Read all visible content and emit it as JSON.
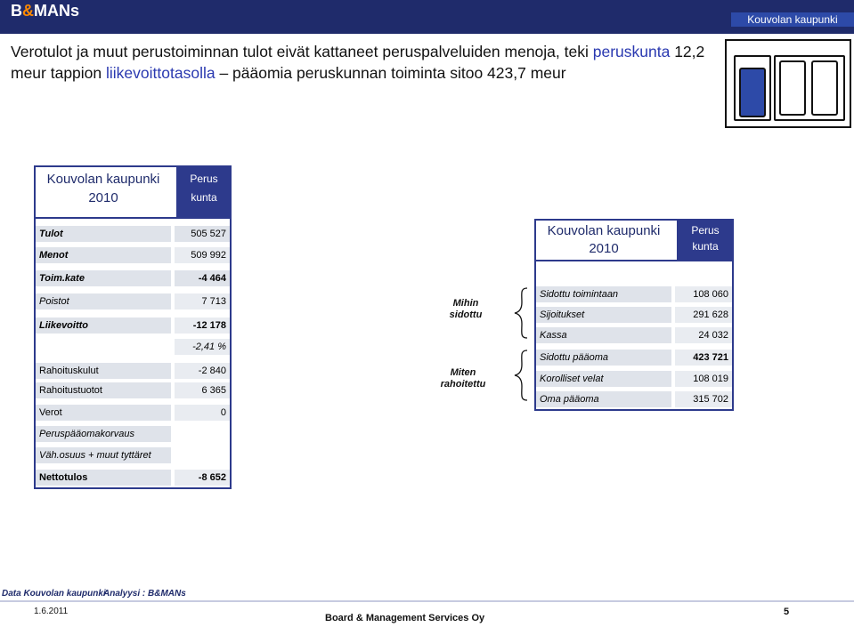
{
  "header": {
    "logo_prefix": "B",
    "logo_amp": "&",
    "logo_suffix": "MANs",
    "org_badge": "Kouvolan kaupunki"
  },
  "title": {
    "part1": "Verotulot ja muut perustoiminnan tulot eivät kattaneet peruspalveluiden menoja, teki ",
    "hl1": "peruskunta",
    "part2": " 12,2  meur tappion ",
    "hl2": "liikevoittotasolla",
    "part3": " – pääomia peruskunnan toiminta sitoo 423,7 meur"
  },
  "left_table": {
    "header_name": "Kouvolan kaupunki",
    "header_year": "2010",
    "header_col_l1": "Perus",
    "header_col_l2": "kunta",
    "rows": [
      {
        "label": "Tulot",
        "value": "505 527"
      },
      {
        "label": "Menot",
        "value": "509 992"
      },
      {
        "label": "Toim.kate",
        "value": "-4 464"
      },
      {
        "label": "Poistot",
        "value": "7 713"
      },
      {
        "label": "Liikevoitto",
        "value": "-12 178"
      },
      {
        "label": "",
        "value": "-2,41 %"
      },
      {
        "label": "Rahoituskulut",
        "value": "-2 840"
      },
      {
        "label": "Rahoitustuotot",
        "value": "6 365"
      },
      {
        "label": "Verot",
        "value": "0"
      },
      {
        "label": "Peruspääomakorvaus",
        "value": ""
      },
      {
        "label": "Väh.osuus + muut tyttäret",
        "value": ""
      },
      {
        "label": "Nettotulos",
        "value": "-8 652"
      }
    ]
  },
  "middle": {
    "mihin_l1": "Mihin",
    "mihin_l2": "sidottu",
    "miten_l1": "Miten",
    "miten_l2": "rahoitettu"
  },
  "right_table": {
    "header_name": "Kouvolan kaupunki",
    "header_year": "2010",
    "header_col_l1": "Perus",
    "header_col_l2": "kunta",
    "rows": [
      {
        "label": "Sidottu toimintaan",
        "value": "108 060"
      },
      {
        "label": "Sijoitukset",
        "value": "291 628"
      },
      {
        "label": "Kassa",
        "value": "24 032"
      },
      {
        "label": "Sidottu pääoma",
        "value": "423 721"
      },
      {
        "label": "Korolliset velat",
        "value": "108 019"
      },
      {
        "label": "Oma pääoma",
        "value": "315 702"
      }
    ]
  },
  "footer": {
    "data_source": "Data Kouvolan kaupunki",
    "analysis": "Analyysi : B&MANs",
    "date": "1.6.2011",
    "company": "Board & Management Services Oy",
    "page": "5"
  }
}
